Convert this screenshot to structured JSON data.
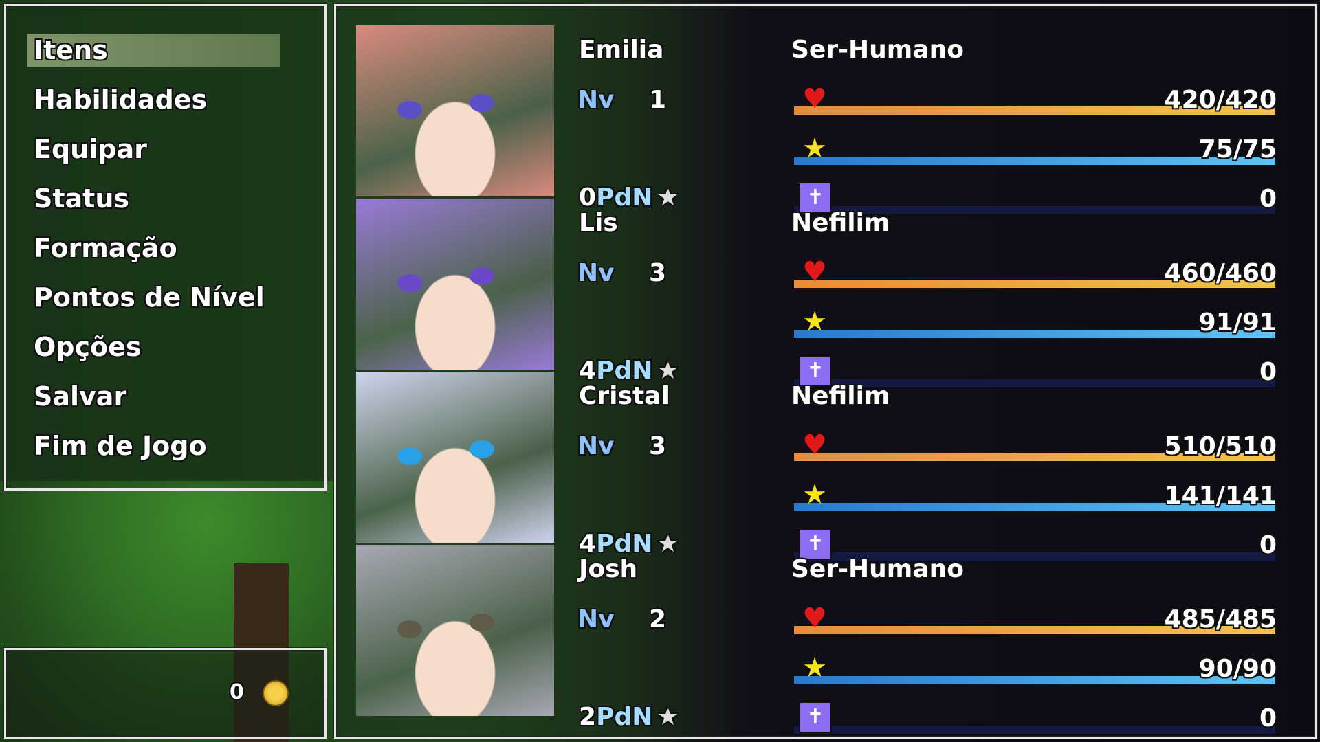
{
  "menu": {
    "items": [
      "Itens",
      "Habilidades",
      "Equipar",
      "Status",
      "Formação",
      "Pontos de Nível",
      "Opções",
      "Salvar",
      "Fim de Jogo"
    ],
    "selected": 0
  },
  "gold": {
    "amount": "0",
    "icon": "gold-coin-icon"
  },
  "labels": {
    "level": "Nv",
    "points_suffix": "PdN"
  },
  "colors": {
    "hp_bar": "#e98b38",
    "mp_bar": "#2b78cc",
    "tp_icon": "#8c6cf0",
    "highlight": "#aabe8c"
  },
  "party": [
    {
      "name": "Emilia",
      "race": "Ser-Humano",
      "level": "1",
      "hp": "420/420",
      "mp": "75/75",
      "tp": "0",
      "points": "0",
      "hair": "#d98a7e",
      "eyes": "#5b4fc8"
    },
    {
      "name": "Lis",
      "race": "Nefilim",
      "level": "3",
      "hp": "460/460",
      "mp": "91/91",
      "tp": "0",
      "points": "4",
      "hair": "#9a7ad8",
      "eyes": "#6a48c8"
    },
    {
      "name": "Cristal",
      "race": "Nefilim",
      "level": "3",
      "hp": "510/510",
      "mp": "141/141",
      "tp": "0",
      "points": "4",
      "hair": "#cfd4ee",
      "eyes": "#2aa0e8"
    },
    {
      "name": "Josh",
      "race": "Ser-Humano",
      "level": "2",
      "hp": "485/485",
      "mp": "90/90",
      "tp": "0",
      "points": "2",
      "hair": "#a8a8b4",
      "eyes": "#605a48"
    }
  ]
}
